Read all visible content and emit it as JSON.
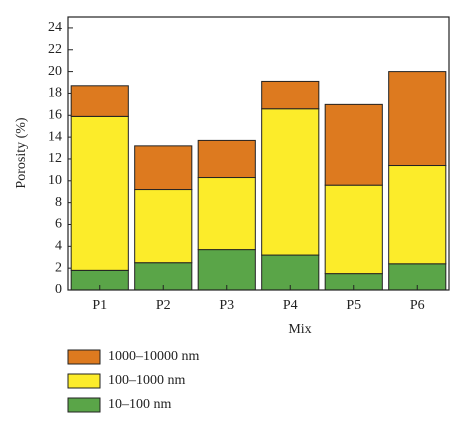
{
  "chart_data": {
    "type": "stacked-bar",
    "x_label": "Mix",
    "y_label": "Porosity (%)",
    "categories": [
      "P1",
      "P2",
      "P3",
      "P4",
      "P5",
      "P6"
    ],
    "series": [
      {
        "name": "10–100 nm",
        "color": "#5aa548",
        "values": [
          1.8,
          2.5,
          3.7,
          3.2,
          1.5,
          2.4
        ]
      },
      {
        "name": "100–1000 nm",
        "color": "#fcec2a",
        "values": [
          14.1,
          6.7,
          6.6,
          13.4,
          8.1,
          9.0
        ]
      },
      {
        "name": "1000–10000 nm",
        "color": "#dd7a1f",
        "values": [
          2.8,
          4.0,
          3.4,
          2.5,
          7.4,
          8.6
        ]
      }
    ],
    "ylim": [
      0,
      25
    ],
    "yticks": [
      0,
      2,
      4,
      6,
      8,
      10,
      12,
      14,
      16,
      18,
      20,
      22,
      24
    ]
  }
}
